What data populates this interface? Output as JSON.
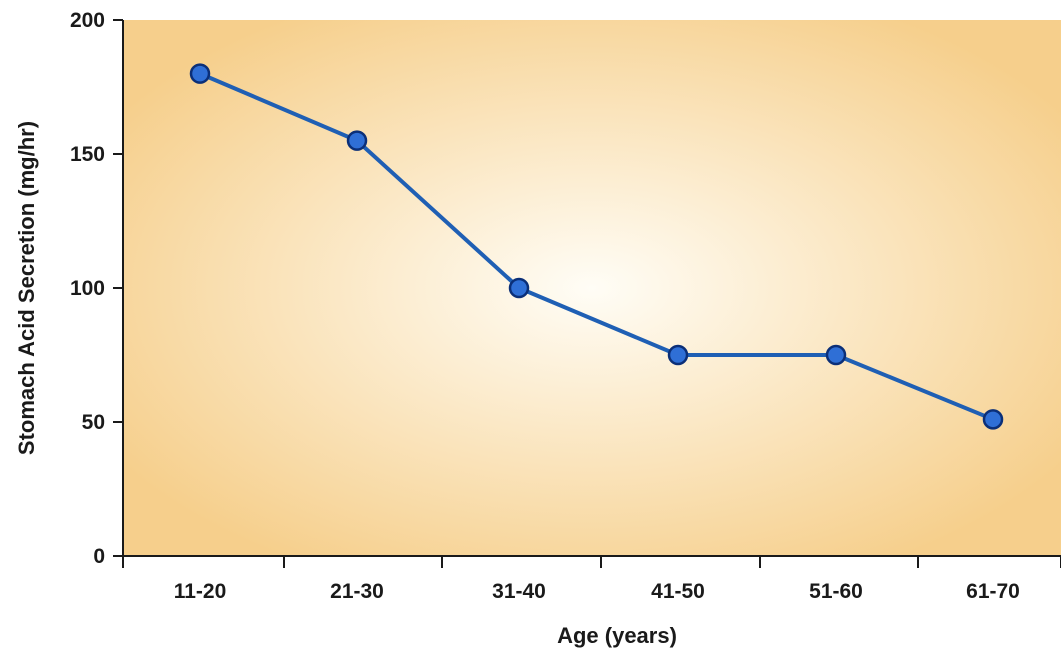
{
  "chart_data": {
    "type": "line",
    "title": "",
    "xlabel": "Age (years)",
    "ylabel": "Stomach Acid Secretion (mg/hr)",
    "categories": [
      "11-20",
      "21-30",
      "31-40",
      "41-50",
      "51-60",
      "61-70"
    ],
    "series": [
      {
        "values": [
          180,
          155,
          100,
          75,
          75,
          51
        ]
      }
    ],
    "ylim": [
      0,
      200
    ],
    "yticks": [
      0,
      50,
      100,
      150,
      200
    ],
    "grid": false,
    "legend": "none",
    "colors": {
      "line": "#1f5fb4",
      "marker_fill": "#2f6fd6",
      "marker_stroke": "#0b2f78",
      "background_center": "#fffdf6",
      "background_edge": "#f6cf8c",
      "axis": "#1a1a1a"
    }
  }
}
